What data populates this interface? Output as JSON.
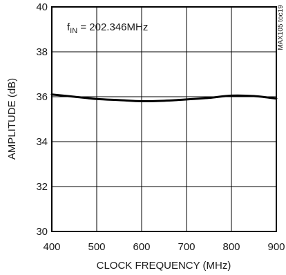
{
  "chart_data": {
    "type": "line",
    "title": "",
    "xlabel": "CLOCK FREQUENCY (MHz)",
    "ylabel": "AMPLITUDE (dB)",
    "xlim": [
      400,
      900
    ],
    "ylim": [
      30,
      40
    ],
    "x_ticks": [
      "400",
      "500",
      "600",
      "700",
      "800",
      "900"
    ],
    "y_ticks": [
      "30",
      "32",
      "34",
      "36",
      "38",
      "40"
    ],
    "grid": true,
    "annotation": {
      "prefix": "f",
      "subscript": "IN",
      "text": " = 202.346MHz"
    },
    "side_label": "MAX105 toc19",
    "series": [
      {
        "x": [
          400,
          450,
          500,
          550,
          600,
          650,
          700,
          750,
          800,
          850,
          900
        ],
        "y": [
          36.1,
          36.0,
          35.9,
          35.85,
          35.8,
          35.82,
          35.88,
          35.95,
          36.05,
          36.03,
          35.92
        ]
      }
    ]
  }
}
